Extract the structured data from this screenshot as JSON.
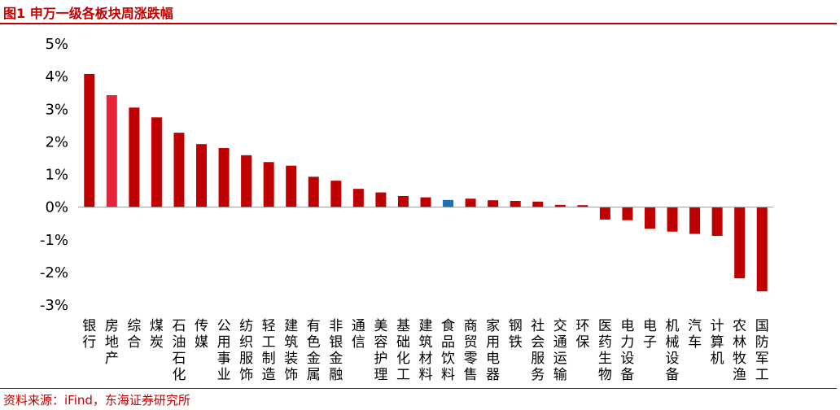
{
  "figure_title": "图1  申万一级各板块周涨跌幅",
  "source": "资料来源：iFind，东海证券研究所",
  "colors": {
    "bar": "#c00000",
    "bar_highlight": "#e8243c",
    "bar_special": "#1f6fb5",
    "title": "#c00000",
    "axis": "#999999"
  },
  "chart_data": {
    "type": "bar",
    "title": "",
    "xlabel": "",
    "ylabel": "",
    "ylim": [
      -3,
      5
    ],
    "yticks": [
      5,
      4,
      3,
      2,
      1,
      0,
      -1,
      -2,
      -3
    ],
    "ytick_labels": [
      "5%",
      "4%",
      "3%",
      "2%",
      "1%",
      "0%",
      "-1%",
      "-2%",
      "-3%"
    ],
    "grid": false,
    "legend": "none",
    "categories": [
      "银行",
      "房地产",
      "综合",
      "煤炭",
      "石油石化",
      "传媒",
      "公用事业",
      "纺织服饰",
      "轻工制造",
      "建筑装饰",
      "有色金属",
      "非银金融",
      "通信",
      "美容护理",
      "基础化工",
      "建筑材料",
      "食品饮料",
      "商贸零售",
      "家用电器",
      "钢铁",
      "社会服务",
      "交通运输",
      "环保",
      "医药生物",
      "电力设备",
      "电子",
      "机械设备",
      "汽车",
      "计算机",
      "农林牧渔",
      "国防军工"
    ],
    "values": [
      4.08,
      3.43,
      3.05,
      2.75,
      2.28,
      1.93,
      1.81,
      1.59,
      1.38,
      1.27,
      0.93,
      0.81,
      0.56,
      0.45,
      0.34,
      0.3,
      0.22,
      0.26,
      0.21,
      0.19,
      0.17,
      0.07,
      0.06,
      -0.38,
      -0.4,
      -0.66,
      -0.75,
      -0.82,
      -0.88,
      -2.18,
      -2.58
    ],
    "highlight_index": 1,
    "special_index": 16
  }
}
